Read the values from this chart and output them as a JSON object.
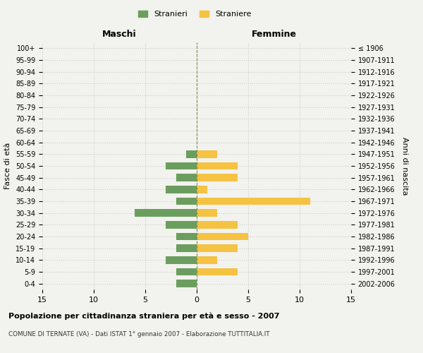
{
  "age_groups": [
    "0-4",
    "5-9",
    "10-14",
    "15-19",
    "20-24",
    "25-29",
    "30-34",
    "35-39",
    "40-44",
    "45-49",
    "50-54",
    "55-59",
    "60-64",
    "65-69",
    "70-74",
    "75-79",
    "80-84",
    "85-89",
    "90-94",
    "95-99",
    "100+"
  ],
  "birth_years": [
    "2002-2006",
    "1997-2001",
    "1992-1996",
    "1987-1991",
    "1982-1986",
    "1977-1981",
    "1972-1976",
    "1967-1971",
    "1962-1966",
    "1957-1961",
    "1952-1956",
    "1947-1951",
    "1942-1946",
    "1937-1941",
    "1932-1936",
    "1927-1931",
    "1922-1926",
    "1917-1921",
    "1912-1916",
    "1907-1911",
    "≤ 1906"
  ],
  "maschi": [
    2,
    2,
    3,
    2,
    2,
    3,
    6,
    2,
    3,
    2,
    3,
    1,
    0,
    0,
    0,
    0,
    0,
    0,
    0,
    0,
    0
  ],
  "femmine": [
    0,
    4,
    2,
    4,
    5,
    4,
    2,
    11,
    1,
    4,
    4,
    2,
    0,
    0,
    0,
    0,
    0,
    0,
    0,
    0,
    0
  ],
  "color_maschi": "#6b9e5e",
  "color_femmine": "#f5c242",
  "title_main": "Popolazione per cittadinanza straniera per età e sesso - 2007",
  "title_sub": "COMUNE DI TERNATE (VA) - Dati ISTAT 1° gennaio 2007 - Elaborazione TUTTITALIA.IT",
  "label_maschi": "Maschi",
  "label_femmine": "Femmine",
  "legend_stranieri": "Stranieri",
  "legend_straniere": "Straniere",
  "ylabel_left": "Fasce di età",
  "ylabel_right": "Anni di nascita",
  "xlim": 15,
  "background_color": "#f2f2ee",
  "grid_color": "#cccccc"
}
